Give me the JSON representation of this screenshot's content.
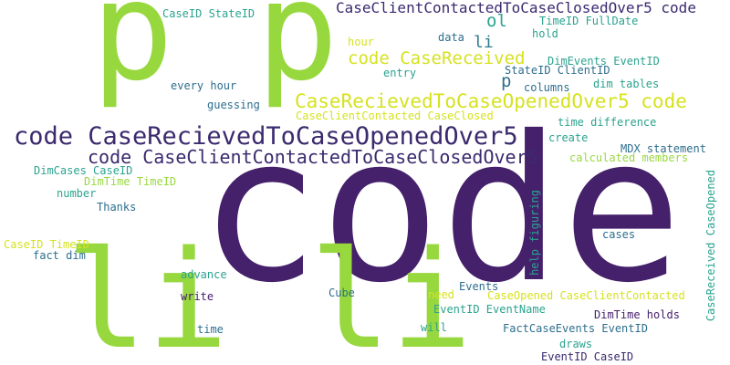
{
  "words": [
    {
      "text": "code",
      "color": "#45206b"
    },
    {
      "text": "p p",
      "color": "#98d83f"
    },
    {
      "text": "li li",
      "color": "#98d83f"
    },
    {
      "text": "code CaseRecievedToCaseOpenedOver5",
      "color": "#3b2a6e"
    },
    {
      "text": "code CaseClientContactedToCaseClosedOver5",
      "color": "#3b2a6e"
    },
    {
      "text": "CaseClientContactedToCaseClosedOver5 code",
      "color": "#3b2a6e"
    },
    {
      "text": "CaseRecievedToCaseOpenedOver5 code",
      "color": "#d6e21f"
    },
    {
      "text": "code CaseReceived",
      "color": "#d6e21f"
    },
    {
      "text": "ol",
      "color": "#2ba38f"
    },
    {
      "text": "li",
      "color": "#2d7d8e"
    },
    {
      "text": "p",
      "color": "#2d6e8e"
    },
    {
      "text": "CaseID StateID",
      "color": "#2ba38f"
    },
    {
      "text": "TimeID FullDate",
      "color": "#2ba38f"
    },
    {
      "text": "hold",
      "color": "#2ba38f"
    },
    {
      "text": "data",
      "color": "#2d6e8e"
    },
    {
      "text": "hour",
      "color": "#d6e21f"
    },
    {
      "text": "DimEvents EventID",
      "color": "#2ba38f"
    },
    {
      "text": "entry",
      "color": "#2ba38f"
    },
    {
      "text": "StateID ClientID",
      "color": "#2d6e8e"
    },
    {
      "text": "every hour",
      "color": "#2d6e8e"
    },
    {
      "text": "columns",
      "color": "#2d6e8e"
    },
    {
      "text": "dim tables",
      "color": "#2ba38f"
    },
    {
      "text": "guessing",
      "color": "#2d6e8e"
    },
    {
      "text": "CaseClientContacted CaseClosed",
      "color": "#d6e21f"
    },
    {
      "text": "time difference",
      "color": "#2ba38f"
    },
    {
      "text": "create",
      "color": "#2ba38f"
    },
    {
      "text": "MDX statement",
      "color": "#2d6e8e"
    },
    {
      "text": "calculated members",
      "color": "#98d83f"
    },
    {
      "text": "DimCases CaseID",
      "color": "#2ba38f"
    },
    {
      "text": "DimTime TimeID",
      "color": "#98d83f"
    },
    {
      "text": "number",
      "color": "#2ba38f"
    },
    {
      "text": "Thanks",
      "color": "#2d6e8e"
    },
    {
      "text": "CaseID TimeID",
      "color": "#d6e21f"
    },
    {
      "text": "fact dim",
      "color": "#2d6e8e"
    },
    {
      "text": "advance",
      "color": "#2ba38f"
    },
    {
      "text": "write",
      "color": "#45206b"
    },
    {
      "text": "time",
      "color": "#2d6e8e"
    },
    {
      "text": "Cube",
      "color": "#2d6e8e"
    },
    {
      "text": "need",
      "color": "#d6e21f"
    },
    {
      "text": "Events",
      "color": "#2d6e8e"
    },
    {
      "text": "EventID EventName",
      "color": "#2ba38f"
    },
    {
      "text": "will",
      "color": "#2ba38f"
    },
    {
      "text": "FactCaseEvents EventID",
      "color": "#2d6e8e"
    },
    {
      "text": "draws",
      "color": "#2ba38f"
    },
    {
      "text": "EventID CaseID",
      "color": "#3b2a6e"
    },
    {
      "text": "CaseOpened CaseClientContacted",
      "color": "#d6e21f"
    },
    {
      "text": "DimTime holds",
      "color": "#45206b"
    },
    {
      "text": "cases",
      "color": "#2d6e8e"
    },
    {
      "text": "help figuring",
      "color": "#2ba38f"
    },
    {
      "text": "CaseReceived CaseOpened",
      "color": "#2ba38f"
    }
  ]
}
